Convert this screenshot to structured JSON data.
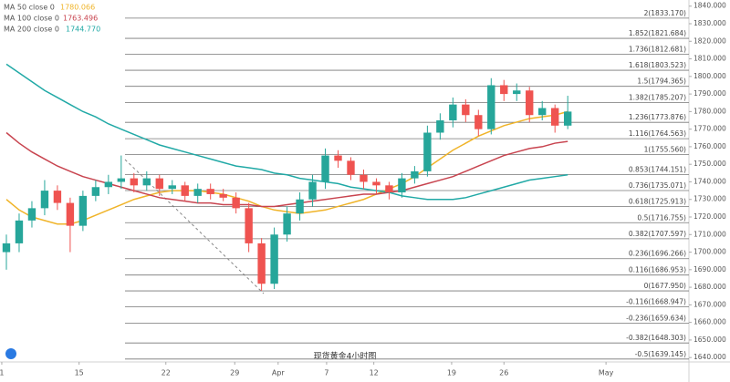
{
  "chart_data": {
    "type": "candlestick",
    "title": "现货黄金4小时图",
    "xlim": [
      -0.5,
      53.5
    ],
    "ylim": [
      1637.5,
      1843.5
    ],
    "xticks": [
      {
        "value": -0.36,
        "label": "1"
      },
      {
        "value": 5.7,
        "label": "15"
      },
      {
        "value": 12.5,
        "label": "22"
      },
      {
        "value": 17.9,
        "label": "29"
      },
      {
        "value": 21.3,
        "label": "Apr"
      },
      {
        "value": 25.1,
        "label": "7"
      },
      {
        "value": 28.8,
        "label": "12"
      },
      {
        "value": 34.9,
        "label": "19"
      },
      {
        "value": 39,
        "label": "26"
      },
      {
        "value": 47,
        "label": "May"
      }
    ],
    "yticks": [
      {
        "value": 1640,
        "label": "1640.000"
      },
      {
        "value": 1650,
        "label": "1650.000"
      },
      {
        "value": 1660,
        "label": "1660.000"
      },
      {
        "value": 1670,
        "label": "1670.000"
      },
      {
        "value": 1680,
        "label": "1680.000"
      },
      {
        "value": 1690,
        "label": "1690.000"
      },
      {
        "value": 1700,
        "label": "1700.000"
      },
      {
        "value": 1710,
        "label": "1710.000"
      },
      {
        "value": 1720,
        "label": "1720.000"
      },
      {
        "value": 1730,
        "label": "1730.000"
      },
      {
        "value": 1740,
        "label": "1740.000"
      },
      {
        "value": 1750,
        "label": "1750.000"
      },
      {
        "value": 1760,
        "label": "1760.000"
      },
      {
        "value": 1770,
        "label": "1770.000"
      },
      {
        "value": 1780,
        "label": "1780.000"
      },
      {
        "value": 1790,
        "label": "1790.000"
      },
      {
        "value": 1800,
        "label": "1800.000"
      },
      {
        "value": 1810,
        "label": "1810.000"
      },
      {
        "value": 1820,
        "label": "1820.000"
      },
      {
        "value": 1830,
        "label": "1830.000"
      },
      {
        "value": 1840,
        "label": "1840.000"
      }
    ],
    "up_color": "#26a69a",
    "down_color": "#ef5350",
    "candles": {
      "open": [
        1700,
        1705,
        1718,
        1725,
        1735,
        1728,
        1715,
        1732,
        1737,
        1740,
        1742,
        1738,
        1742,
        1736,
        1738,
        1732,
        1736,
        1733,
        1731,
        1725,
        1705,
        1682,
        1710,
        1722,
        1730,
        1740,
        1755,
        1752,
        1744,
        1740,
        1738,
        1734,
        1742,
        1746,
        1768,
        1775,
        1784,
        1778,
        1770,
        1795,
        1790,
        1792,
        1778,
        1782,
        1772
      ],
      "high": [
        1710,
        1722,
        1729,
        1741,
        1738,
        1731,
        1735,
        1741,
        1744,
        1755,
        1745,
        1746,
        1744,
        1741,
        1740,
        1739,
        1739,
        1736,
        1734,
        1728,
        1708,
        1714,
        1726,
        1734,
        1744,
        1759,
        1758,
        1754,
        1747,
        1742,
        1740,
        1745,
        1749,
        1772,
        1779,
        1788,
        1787,
        1781,
        1799,
        1798,
        1796,
        1794,
        1786,
        1784,
        1789
      ],
      "low": [
        1690,
        1700,
        1714,
        1721,
        1724,
        1700,
        1712,
        1729,
        1733,
        1736,
        1734,
        1735,
        1732,
        1733,
        1729,
        1728,
        1730,
        1729,
        1722,
        1700,
        1678,
        1679,
        1706,
        1718,
        1726,
        1736,
        1748,
        1741,
        1736,
        1733,
        1730,
        1731,
        1739,
        1743,
        1764,
        1771,
        1774,
        1766,
        1767,
        1786,
        1786,
        1774,
        1775,
        1768,
        1770
      ],
      "close": [
        1705,
        1718,
        1725,
        1735,
        1728,
        1715,
        1732,
        1737,
        1740,
        1742,
        1738,
        1742,
        1736,
        1738,
        1732,
        1736,
        1733,
        1731,
        1725,
        1705,
        1682,
        1710,
        1722,
        1730,
        1740,
        1755,
        1752,
        1744,
        1740,
        1738,
        1734,
        1742,
        1746,
        1768,
        1775,
        1784,
        1778,
        1770,
        1795,
        1790,
        1792,
        1778,
        1782,
        1772,
        1780
      ]
    },
    "series": [
      {
        "name": "MA 50 close 0",
        "color": "#f0b429",
        "last": {
          "value": 1780.066,
          "label": "1780.066"
        },
        "values": [
          1730,
          1724,
          1720,
          1718,
          1716,
          1716,
          1718,
          1721,
          1724,
          1727,
          1730,
          1732,
          1734,
          1735,
          1735,
          1735,
          1734,
          1733,
          1731,
          1729,
          1726,
          1724,
          1723,
          1722,
          1723,
          1724,
          1726,
          1728,
          1730,
          1733,
          1736,
          1739,
          1743,
          1748,
          1753,
          1758,
          1762,
          1766,
          1769,
          1772,
          1774,
          1776,
          1777,
          1778,
          1780
        ]
      },
      {
        "name": "MA 100 close 0",
        "color": "#c8444f",
        "last": {
          "value": 1763.496,
          "label": "1763.496"
        },
        "values": [
          1768,
          1762,
          1757,
          1753,
          1749,
          1746,
          1743,
          1741,
          1739,
          1737,
          1735,
          1733,
          1731,
          1730,
          1729,
          1728,
          1728,
          1727,
          1727,
          1727,
          1726,
          1726,
          1727,
          1728,
          1729,
          1730,
          1731,
          1732,
          1733,
          1733,
          1734,
          1735,
          1737,
          1739,
          1741,
          1743,
          1746,
          1749,
          1752,
          1755,
          1757,
          1759,
          1760,
          1762,
          1763
        ]
      },
      {
        "name": "MA 200 close 0",
        "color": "#21a9a6",
        "last": {
          "value": 1744.77,
          "label": "1744.770"
        },
        "values": [
          1807,
          1802,
          1797,
          1792,
          1788,
          1784,
          1780,
          1777,
          1773,
          1770,
          1767,
          1764,
          1761,
          1759,
          1757,
          1755,
          1753,
          1751,
          1749,
          1748,
          1747,
          1745,
          1744,
          1742,
          1741,
          1740,
          1739,
          1737,
          1736,
          1735,
          1734,
          1732,
          1731,
          1730,
          1730,
          1730,
          1731,
          1733,
          1735,
          1737,
          1739,
          1741,
          1742,
          1743,
          1744
        ]
      }
    ],
    "fib_levels": [
      {
        "value": 1833.17,
        "label": "2(1833.170)"
      },
      {
        "value": 1821.684,
        "label": "1.852(1821.684)"
      },
      {
        "value": 1812.681,
        "label": "1.736(1812.681)"
      },
      {
        "value": 1803.523,
        "label": "1.618(1803.523)"
      },
      {
        "value": 1794.365,
        "label": "1.5(1794.365)"
      },
      {
        "value": 1785.207,
        "label": "1.382(1785.207)"
      },
      {
        "value": 1773.876,
        "label": "1.236(1773.876)"
      },
      {
        "value": 1764.563,
        "label": "1.116(1764.563)"
      },
      {
        "value": 1755.56,
        "label": "1(1755.560)"
      },
      {
        "value": 1744.151,
        "label": "0.853(1744.151)"
      },
      {
        "value": 1735.071,
        "label": "0.736(1735.071)"
      },
      {
        "value": 1725.913,
        "label": "0.618(1725.913)"
      },
      {
        "value": 1716.755,
        "label": "0.5(1716.755)"
      },
      {
        "value": 1707.597,
        "label": "0.382(1707.597)"
      },
      {
        "value": 1696.266,
        "label": "0.236(1696.266)"
      },
      {
        "value": 1686.953,
        "label": "0.116(1686.953)"
      },
      {
        "value": 1677.95,
        "label": "0(1677.950)"
      },
      {
        "value": 1668.947,
        "label": "-0.116(1668.947)"
      },
      {
        "value": 1659.634,
        "label": "-0.236(1659.634)"
      },
      {
        "value": 1648.303,
        "label": "-0.382(1648.303)"
      },
      {
        "value": 1639.145,
        "label": "-0.5(1639.145)"
      }
    ]
  }
}
